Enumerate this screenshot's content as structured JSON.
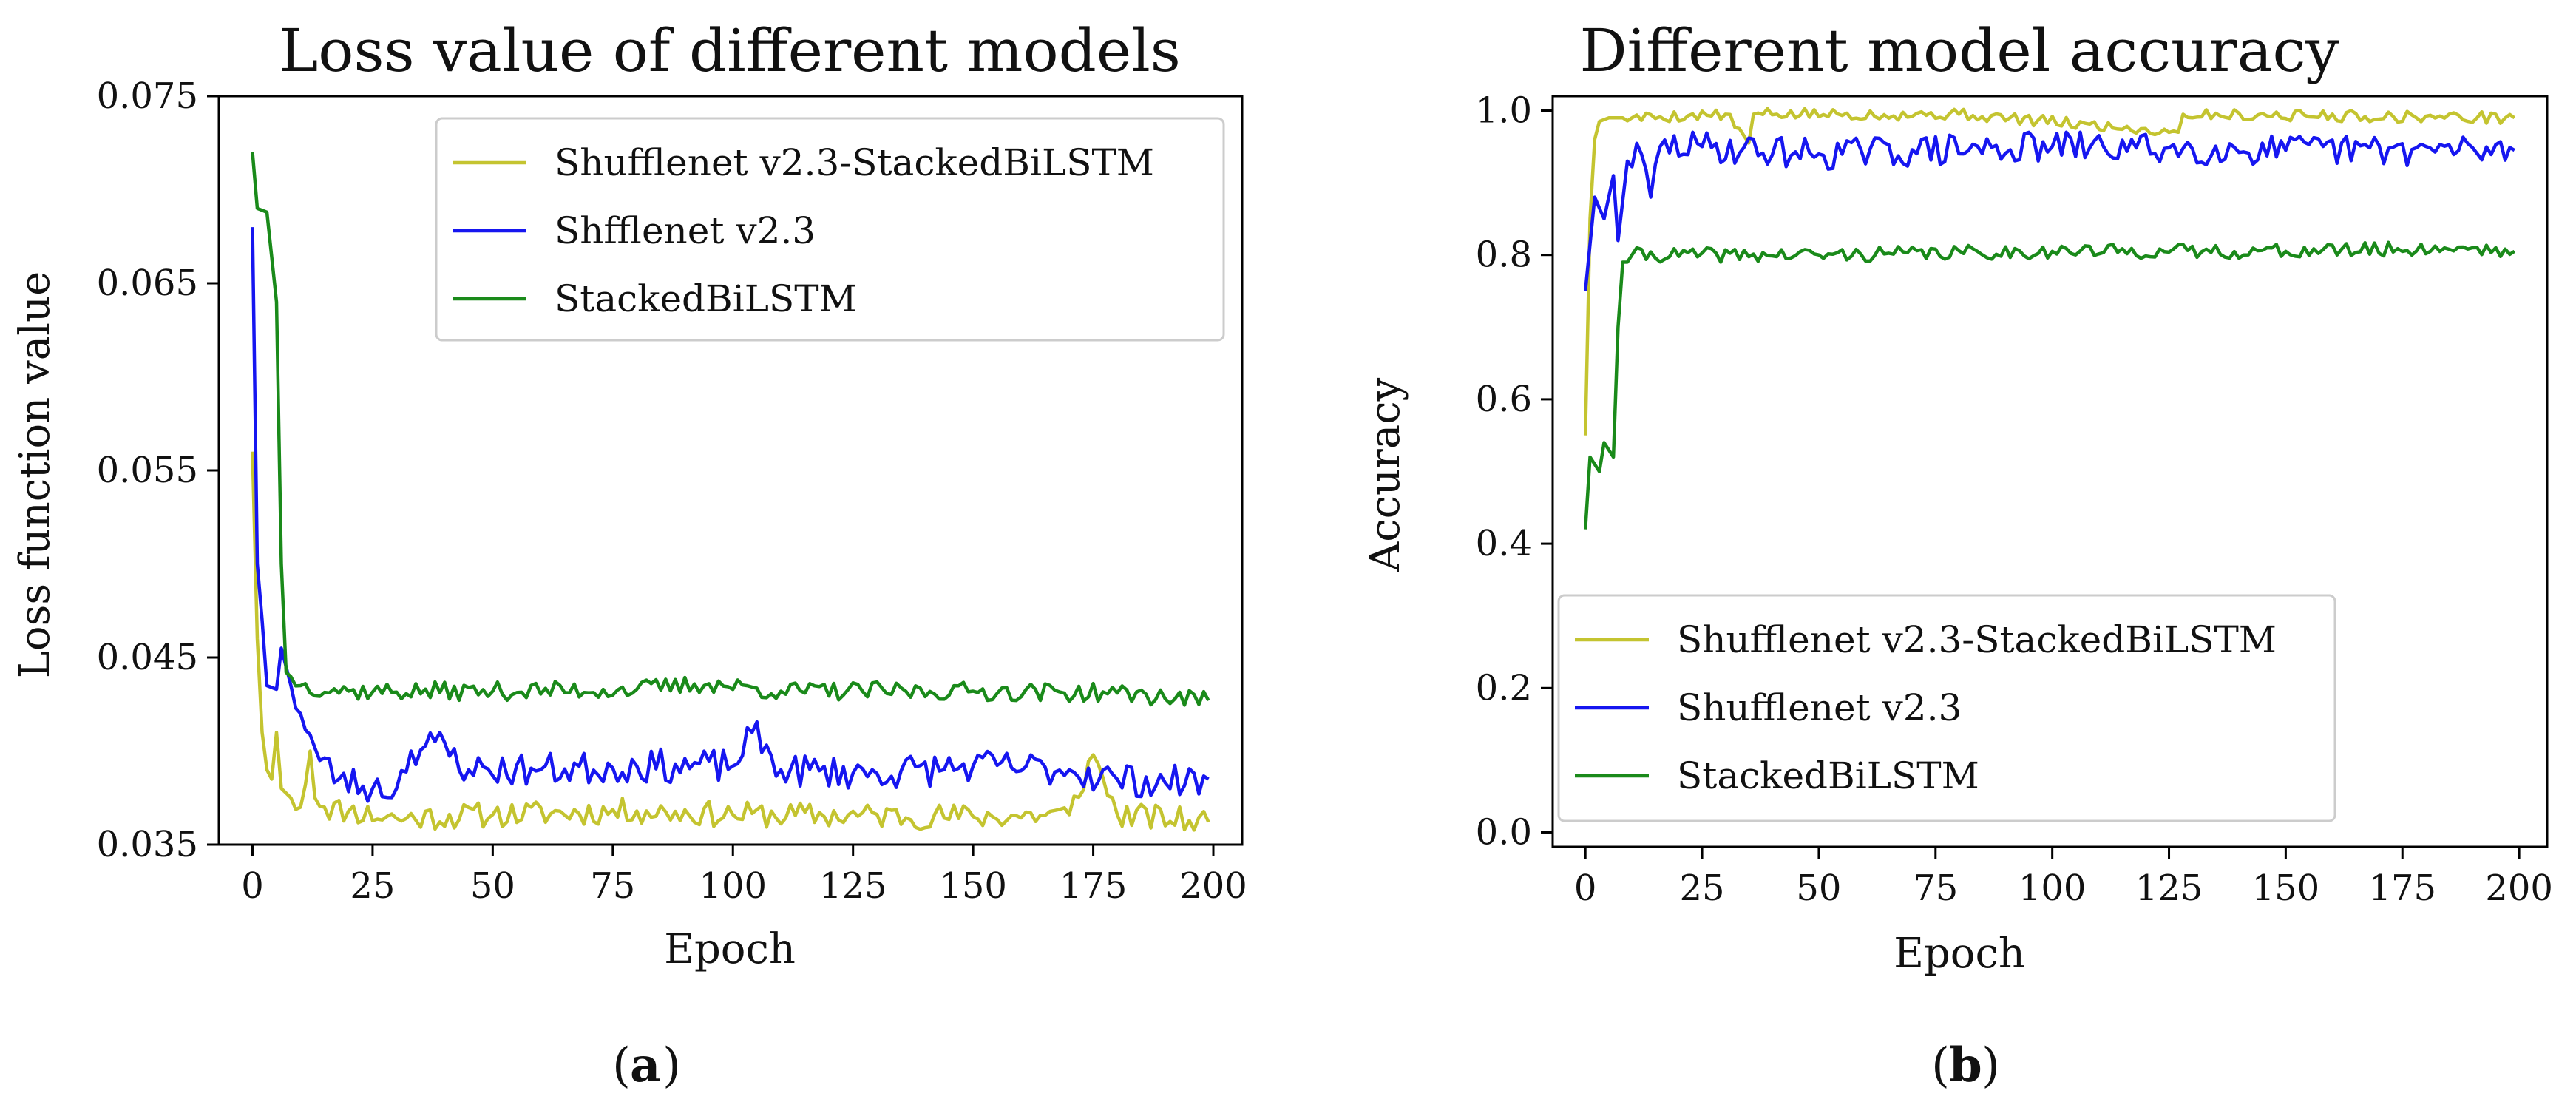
{
  "captions": {
    "a": "a",
    "b": "b"
  },
  "colors": {
    "yolo": "#c4c430",
    "blue": "#1616f0",
    "green": "#1a8a1a",
    "axis": "#000000",
    "legendEdge": "#cccccc"
  },
  "chart_data": [
    {
      "type": "line",
      "title": "Loss value of different models",
      "xlabel": "Epoch",
      "ylabel": "Loss function value",
      "xlim": [
        -7,
        206
      ],
      "ylim": [
        0.035,
        0.075
      ],
      "xticks": [
        0,
        25,
        50,
        75,
        100,
        125,
        150,
        175,
        200
      ],
      "xtick_labels": [
        "0",
        "25",
        "50",
        "75",
        "100",
        "125",
        "150",
        "175",
        "200"
      ],
      "yticks": [
        0.035,
        0.045,
        0.055,
        0.065,
        0.075
      ],
      "ytick_labels": [
        "0.035",
        "0.045",
        "0.055",
        "0.065",
        "0.075"
      ],
      "legend_position": "top-right",
      "series": [
        {
          "name": "Shufflenet v2.3-StackedBiLSTM",
          "color": "#c4c430",
          "keypoints": [
            [
              0,
              0.056
            ],
            [
              1,
              0.046
            ],
            [
              2,
              0.041
            ],
            [
              3,
              0.039
            ],
            [
              4,
              0.0385
            ],
            [
              5,
              0.041
            ],
            [
              6,
              0.038
            ],
            [
              8,
              0.0375
            ],
            [
              10,
              0.037
            ],
            [
              12,
              0.04
            ],
            [
              13,
              0.0375
            ],
            [
              15,
              0.037
            ],
            [
              20,
              0.0368
            ],
            [
              30,
              0.0364
            ],
            [
              50,
              0.0366
            ],
            [
              80,
              0.0368
            ],
            [
              100,
              0.0366
            ],
            [
              150,
              0.0365
            ],
            [
              170,
              0.0366
            ],
            [
              175,
              0.0398
            ],
            [
              180,
              0.0366
            ],
            [
              199,
              0.0362
            ]
          ],
          "noise": 0.0007,
          "seed": 11
        },
        {
          "name": "Shfflenet v2.3",
          "color": "#1616f0",
          "keypoints": [
            [
              0,
              0.068
            ],
            [
              1,
              0.05
            ],
            [
              2,
              0.047
            ],
            [
              3,
              0.0435
            ],
            [
              5,
              0.0433
            ],
            [
              6,
              0.0455
            ],
            [
              8,
              0.0435
            ],
            [
              10,
              0.042
            ],
            [
              14,
              0.0395
            ],
            [
              18,
              0.0385
            ],
            [
              25,
              0.038
            ],
            [
              30,
              0.038
            ],
            [
              33,
              0.04
            ],
            [
              38,
              0.0405
            ],
            [
              45,
              0.039
            ],
            [
              60,
              0.039
            ],
            [
              80,
              0.0392
            ],
            [
              100,
              0.0392
            ],
            [
              104,
              0.041
            ],
            [
              110,
              0.039
            ],
            [
              130,
              0.0388
            ],
            [
              150,
              0.0392
            ],
            [
              170,
              0.039
            ],
            [
              180,
              0.0385
            ],
            [
              190,
              0.0383
            ],
            [
              199,
              0.0385
            ]
          ],
          "noise": 0.0009,
          "seed": 23
        },
        {
          "name": "StackedBiLSTM",
          "color": "#1a8a1a",
          "keypoints": [
            [
              0,
              0.072
            ],
            [
              1,
              0.069
            ],
            [
              3,
              0.0688
            ],
            [
              5,
              0.064
            ],
            [
              6,
              0.05
            ],
            [
              7,
              0.0442
            ],
            [
              10,
              0.0435
            ],
            [
              20,
              0.0432
            ],
            [
              50,
              0.0432
            ],
            [
              80,
              0.0433
            ],
            [
              95,
              0.0436
            ],
            [
              110,
              0.0432
            ],
            [
              150,
              0.0432
            ],
            [
              180,
              0.0431
            ],
            [
              199,
              0.0427
            ]
          ],
          "noise": 0.0005,
          "seed": 37
        }
      ]
    },
    {
      "type": "line",
      "title": "Different model accuracy",
      "xlabel": "Epoch",
      "ylabel": "Accuracy",
      "xlim": [
        -7,
        206
      ],
      "ylim": [
        -0.02,
        1.02
      ],
      "xticks": [
        0,
        25,
        50,
        75,
        100,
        125,
        150,
        175,
        200
      ],
      "xtick_labels": [
        "0",
        "25",
        "50",
        "75",
        "100",
        "125",
        "150",
        "175",
        "200"
      ],
      "yticks": [
        0.0,
        0.2,
        0.4,
        0.6,
        0.8,
        1.0
      ],
      "ytick_labels": [
        "0.0",
        "0.2",
        "0.4",
        "0.6",
        "0.8",
        "1.0"
      ],
      "legend_position": "bottom-left",
      "series": [
        {
          "name": "Shufflenet v2.3-StackedBiLSTM",
          "color": "#c4c430",
          "keypoints": [
            [
              0,
              0.55
            ],
            [
              1,
              0.85
            ],
            [
              2,
              0.96
            ],
            [
              3,
              0.985
            ],
            [
              5,
              0.99
            ],
            [
              10,
              0.99
            ],
            [
              30,
              0.995
            ],
            [
              35,
              0.955
            ],
            [
              36,
              0.995
            ],
            [
              80,
              0.995
            ],
            [
              127,
              0.97
            ],
            [
              128,
              0.995
            ],
            [
              199,
              0.99
            ]
          ],
          "noise": 0.008,
          "seed": 5
        },
        {
          "name": "Shufflenet v2.3",
          "color": "#1616f0",
          "keypoints": [
            [
              0,
              0.75
            ],
            [
              2,
              0.88
            ],
            [
              4,
              0.85
            ],
            [
              6,
              0.91
            ],
            [
              7,
              0.82
            ],
            [
              9,
              0.93
            ],
            [
              12,
              0.94
            ],
            [
              14,
              0.88
            ],
            [
              16,
              0.95
            ],
            [
              25,
              0.95
            ],
            [
              50,
              0.94
            ],
            [
              100,
              0.95
            ],
            [
              150,
              0.945
            ],
            [
              199,
              0.945
            ]
          ],
          "noise": 0.022,
          "seed": 29
        },
        {
          "name": "StackedBiLSTM",
          "color": "#1a8a1a",
          "keypoints": [
            [
              0,
              0.42
            ],
            [
              1,
              0.52
            ],
            [
              3,
              0.5
            ],
            [
              4,
              0.54
            ],
            [
              6,
              0.52
            ],
            [
              7,
              0.7
            ],
            [
              8,
              0.79
            ],
            [
              10,
              0.8
            ],
            [
              50,
              0.8
            ],
            [
              100,
              0.805
            ],
            [
              150,
              0.805
            ],
            [
              190,
              0.81
            ],
            [
              199,
              0.805
            ]
          ],
          "noise": 0.01,
          "seed": 41
        }
      ]
    }
  ]
}
